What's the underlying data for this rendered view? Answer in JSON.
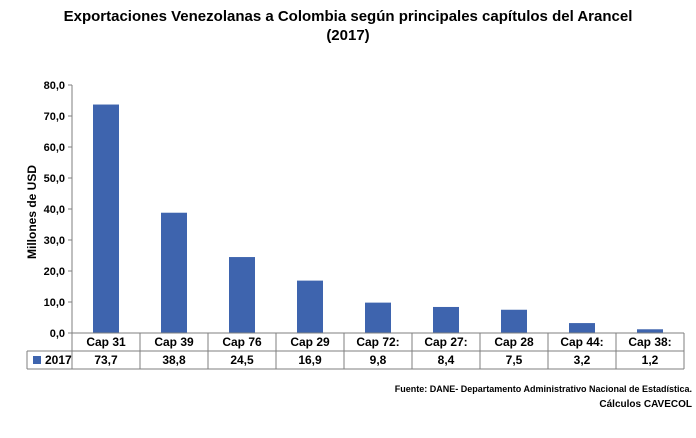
{
  "chart_data": {
    "type": "bar",
    "title": "Exportaciones Venezolanas a Colombia según principales capítulos del Arancel",
    "subtitle": "(2017)",
    "ylabel": "Millones de USD",
    "xlabel": "",
    "ylim": [
      0,
      80
    ],
    "yticks": [
      "0,0",
      "10,0",
      "20,0",
      "30,0",
      "40,0",
      "50,0",
      "60,0",
      "70,0",
      "80,0"
    ],
    "categories": [
      "Cap 31",
      "Cap 39",
      "Cap 76",
      "Cap 29",
      "Cap 72:",
      "Cap 27:",
      "Cap 28",
      "Cap 44:",
      "Cap 38:"
    ],
    "series": [
      {
        "name": "2017",
        "color": "#3e64ae",
        "values": [
          73.7,
          38.8,
          24.5,
          16.9,
          9.8,
          8.4,
          7.5,
          3.2,
          1.2
        ],
        "labels": [
          "73,7",
          "38,8",
          "24,5",
          "16,9",
          "9,8",
          "8,4",
          "7,5",
          "3,2",
          "1,2"
        ]
      }
    ],
    "grid": false,
    "legend": "data-table",
    "data_table": true
  },
  "footer": {
    "source": "Fuente: DANE- Departamento Administrativo Nacional de Estadística.",
    "credit": "Cálculos CAVECOL"
  }
}
